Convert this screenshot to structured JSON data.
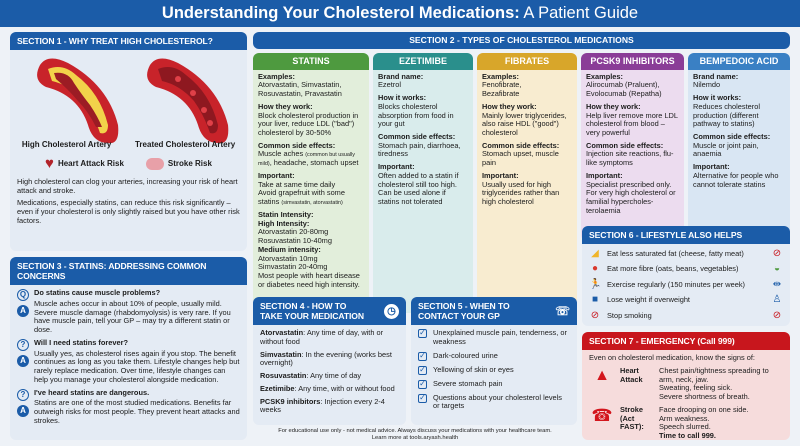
{
  "title": {
    "bold": "Understanding Your Cholesterol Medications:",
    "rest": " A Patient Guide"
  },
  "section1": {
    "header": "SECTION 1 - WHY TREAT HIGH CHOLESTEROL?",
    "artery_high": "High Cholesterol Artery",
    "artery_treated": "Treated Cholesterol Artery",
    "heart_risk": "Heart Attack Risk",
    "stroke_risk": "Stroke Risk",
    "para1": "High cholesterol can clog your arteries, increasing your risk of heart attack and stroke.",
    "para2": "Medications, especially statins, can reduce this risk significantly – even if your cholesterol is only slightly raised but you have other risk factors."
  },
  "section2": {
    "header": "SECTION 2 - TYPES OF CHOLESTEROL MEDICATIONS",
    "columns": [
      {
        "title": "STATINS",
        "color": "#4e9a3f",
        "bg": "#e2eedb",
        "blocks": [
          {
            "label": "Examples:",
            "lines": [
              "Atorvastatin, Simvastatin, Rosuvastatin, Pravastatin"
            ]
          },
          {
            "label": "How they work:",
            "lines": [
              "Block cholesterol production in your liver, reduce LDL (\"bad\") cholesterol by 30-50%"
            ]
          },
          {
            "label": "Common side effects:",
            "lines": [
              "Muscle aches ",
              {
                "small": "(common but usually mild)"
              },
              ", headache, stomach upset"
            ]
          },
          {
            "label": "Important:",
            "lines": [
              "Take at same time daily",
              {
                "br": true
              },
              "Avoid grapefruit with some statins ",
              {
                "small": "(simvastatin, atorvastatin)"
              }
            ]
          },
          {
            "label": "Statin Intensity:",
            "lines": [
              {
                "b": "High Intensity:"
              },
              "Atorvastatin 20-80mg",
              {
                "br": true
              },
              "Rosuvastatin 10-40mg",
              {
                "br": true
              },
              {
                "b": "Medium intensity:"
              },
              "Atorvastatin 10mg",
              {
                "br": true
              },
              "Simvastatin 20-40mg",
              {
                "br": true
              },
              "Most people with heart disease or diabetes need high intensity."
            ]
          }
        ]
      },
      {
        "title": "EZETIMIBE",
        "color": "#2a8f8c",
        "bg": "#d9ecec",
        "blocks": [
          {
            "label": "Brand name:",
            "lines": [
              "Ezetrol"
            ]
          },
          {
            "label": "How it works:",
            "lines": [
              "Blocks cholesterol absorption from food in your gut"
            ]
          },
          {
            "label": "Common side effects:",
            "lines": [
              "Stomach pain, diarrhoea, tiredness"
            ]
          },
          {
            "label": "Important:",
            "lines": [
              "Often added to a statin if cholesterol still too high. Can be used alone if statins not tolerated"
            ]
          }
        ]
      },
      {
        "title": "FIBRATES",
        "color": "#d8a62a",
        "bg": "#f8ecd0",
        "blocks": [
          {
            "label": "Examples:",
            "lines": [
              "Fenofibrate,",
              {
                "br": true
              },
              "Bezafibrate"
            ]
          },
          {
            "label": "How they work:",
            "lines": [
              "Mainly lower triglycerides, also raise HDL (\"good\") cholesterol"
            ]
          },
          {
            "label": "Common side effects:",
            "lines": [
              "Stomach upset, muscle pain"
            ]
          },
          {
            "label": "Important:",
            "lines": [
              "Usually used for high triglycerides rather than high cholesterol"
            ]
          }
        ]
      },
      {
        "title": "PCSK9 INHIBITORS",
        "color": "#8a3d97",
        "bg": "#ecdcef",
        "blocks": [
          {
            "label": "Examples:",
            "lines": [
              "Alirocumab (Praluent), Evolocumab (Repatha)"
            ]
          },
          {
            "label": "How they work:",
            "lines": [
              "Help liver remove more LDL cholesterol from blood – very powerful"
            ]
          },
          {
            "label": "Common side effects:",
            "lines": [
              "Injection site reactions, flu-like symptoms"
            ]
          },
          {
            "label": "Important:",
            "lines": [
              "Specialist prescribed only. For very high cholesterol or familial hypercholes-terolaemia"
            ]
          }
        ]
      },
      {
        "title": "BEMPEDOIC ACID",
        "color": "#3a80c4",
        "bg": "#d9e6f3",
        "blocks": [
          {
            "label": "Brand name:",
            "lines": [
              "Nilemdo"
            ]
          },
          {
            "label": "How it works:",
            "lines": [
              "Reduces cholesterol production (different pathway to statins)"
            ]
          },
          {
            "label": "Common side effects:",
            "lines": [
              "Muscle or joint pain, anaemia"
            ]
          },
          {
            "label": "Important:",
            "lines": [
              "Alternative for people who cannot tolerate statins"
            ]
          }
        ]
      }
    ]
  },
  "section3": {
    "header": "SECTION 3 - STATINS: ADDRESSING COMMON CONCERNS",
    "items": [
      {
        "icon": "Q",
        "q": "Do statins cause muscle problems?",
        "a": "Muscle aches occur in about 10% of people, usually mild. Severe muscle damage (rhabdomyolysis) is very rare. If you have muscle pain, tell your GP – may try a different statin or dose."
      },
      {
        "icon": "?",
        "q": "Will I need statins forever?",
        "a": "Usually yes, as cholesterol rises again if you stop. The benefit continues as long as you take them. Lifestyle changes help but rarely replace medication. Over time, lifestyle changes can help you manage your cholesterol alongside medication."
      },
      {
        "icon": "?",
        "q": "I've heard statins are dangerous.",
        "a": "Statins are one of the most studied medications. Benefits far outweigh risks for most people. They prevent heart attacks and strokes."
      }
    ],
    "answer_icon": "A"
  },
  "section4": {
    "header": "SECTION 4 - HOW TO TAKE YOUR MEDICATION",
    "items": [
      {
        "name": "Atorvastatin",
        "text": ": Any time of day, with or without food"
      },
      {
        "name": "Simvastatin",
        "text": ": In the evening (works best overnight)"
      },
      {
        "name": "Rosuvastatin",
        "text": ": Any time of day"
      },
      {
        "name": "Ezetimibe",
        "text": ": Any time, with or without food"
      },
      {
        "name": "PCSK9 inhibitors",
        "text": ": Injection every 2-4 weeks"
      }
    ]
  },
  "section5": {
    "header": "SECTION 5 - WHEN TO CONTACT YOUR GP",
    "items": [
      "Unexplained muscle pain, tenderness, or weakness",
      "Dark-coloured urine",
      "Yellowing of skin or eyes",
      "Severe stomach pain",
      "Questions about your cholesterol levels or targets"
    ]
  },
  "section6": {
    "header": "SECTION 6 - LIFESTYLE ALSO HELPS",
    "items": [
      {
        "icon": "cheese-icon",
        "text": "Eat less saturated fat (cheese, fatty meat)",
        "right_icon": "no-fat-icon"
      },
      {
        "icon": "fruit-icon",
        "text": "Eat more fibre (oats, beans, vegetables)",
        "right_icon": "salad-icon"
      },
      {
        "icon": "running-icon",
        "text": "Exercise regularly (150 minutes per week)",
        "right_icon": "dumbbell-icon"
      },
      {
        "icon": "scale-icon",
        "text": "Lose weight if overweight",
        "right_icon": "person-icon"
      },
      {
        "icon": "no-smoking-icon",
        "text": "Stop smoking",
        "right_icon": "no-smoking-icon"
      }
    ]
  },
  "section7": {
    "header": "SECTION 7 - EMERGENCY (Call 999)",
    "intro": "Even on cholesterol medication, know the signs of:",
    "heart": {
      "label": "Heart Attack",
      "lines": [
        "Chest pain/tightness spreading to arm, neck, jaw.",
        "Sweating, feeling sick.",
        "Severe shortness of breath."
      ]
    },
    "stroke": {
      "label": "Stroke (Act FAST):",
      "lines": [
        "Face drooping on one side.",
        "Arm weakness.",
        "Speech slurred."
      ],
      "final": "Time to call 999."
    }
  },
  "footer": {
    "line1": "For educational use only - not medical advice. Always discuss your medications with your healthcare team.",
    "line2": "Learn more at tools.aryash.health"
  },
  "colors": {
    "primary": "#1b5ca8",
    "emergency": "#c8161d"
  }
}
